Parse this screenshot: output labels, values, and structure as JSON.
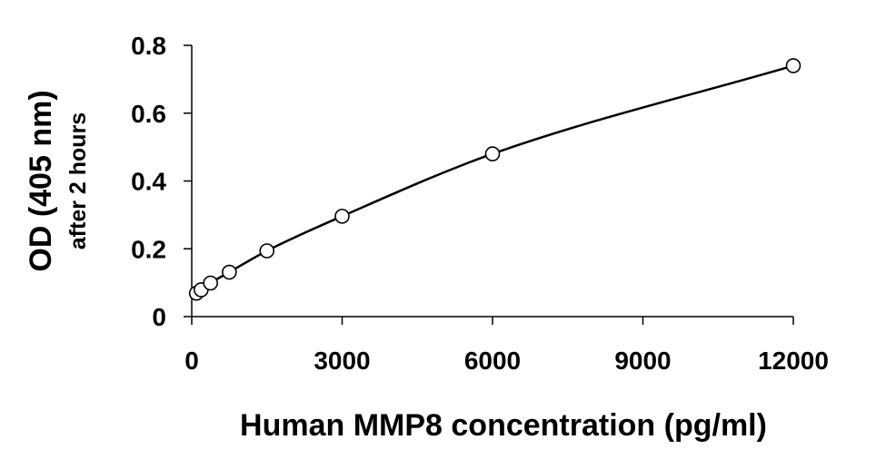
{
  "chart_data": {
    "type": "scatter",
    "xlabel": "Human MMP8 concentration (pg/ml)",
    "ylabel": "OD (405 nm)",
    "ylabel_sub": "after 2 hours",
    "xlim": [
      0,
      12000
    ],
    "ylim": [
      0,
      0.8
    ],
    "x_ticks": [
      0,
      3000,
      6000,
      9000,
      12000
    ],
    "x_tick_labels": [
      "0",
      "3000",
      "6000",
      "9000",
      "12000"
    ],
    "y_ticks": [
      0,
      0.2,
      0.4,
      0.6,
      0.8
    ],
    "y_tick_labels": [
      "0",
      "0.2",
      "0.4",
      "0.6",
      "0.8"
    ],
    "grid": false,
    "legend": "none",
    "marker": "open-circle",
    "fit_line": true,
    "series": [
      {
        "x": [
          93.75,
          187.5,
          375,
          750,
          1500,
          3000,
          6000,
          12000
        ],
        "y": [
          0.069,
          0.079,
          0.099,
          0.131,
          0.194,
          0.296,
          0.48,
          0.74
        ]
      }
    ]
  }
}
